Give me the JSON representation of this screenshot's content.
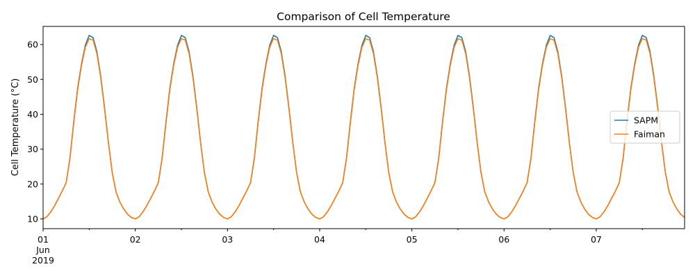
{
  "chart_data": {
    "type": "line",
    "title": "Comparison of Cell Temperature",
    "xlabel": "",
    "ylabel": "Cell Temperature (°C)",
    "x_range": [
      "2019-06-01 00:00",
      "2019-06-07 23:00"
    ],
    "x_step": "1 hour",
    "xlim_days": [
      0,
      6.958
    ],
    "ylim": [
      7.2,
      65.2
    ],
    "yticks": [
      10,
      20,
      30,
      40,
      50,
      60
    ],
    "xticks": [
      {
        "day": 0,
        "label": [
          "01",
          "Jun",
          "2019"
        ]
      },
      {
        "day": 1,
        "label": [
          "02"
        ]
      },
      {
        "day": 2,
        "label": [
          "03"
        ]
      },
      {
        "day": 3,
        "label": [
          "04"
        ]
      },
      {
        "day": 4,
        "label": [
          "05"
        ]
      },
      {
        "day": 5,
        "label": [
          "06"
        ]
      },
      {
        "day": 6,
        "label": [
          "07"
        ]
      }
    ],
    "grid": false,
    "legend_placement": "center-right",
    "series": [
      {
        "name": "SAPM",
        "color": "#1f77b4",
        "values": [
          10.0,
          10.6,
          12.0,
          13.8,
          15.9,
          18.0,
          20.4,
          27.5,
          38.0,
          47.5,
          54.5,
          59.8,
          62.6,
          62.0,
          58.0,
          51.0,
          42.0,
          32.0,
          23.3,
          17.7,
          14.8,
          12.8,
          11.3,
          10.4,
          10.0,
          10.6,
          12.0,
          13.8,
          15.9,
          18.0,
          20.4,
          27.5,
          38.0,
          47.5,
          54.5,
          59.8,
          62.6,
          62.0,
          58.0,
          51.0,
          42.0,
          32.0,
          23.3,
          17.7,
          14.8,
          12.8,
          11.3,
          10.4,
          10.0,
          10.6,
          12.0,
          13.8,
          15.9,
          18.0,
          20.4,
          27.5,
          38.0,
          47.5,
          54.5,
          59.8,
          62.6,
          62.0,
          58.0,
          51.0,
          42.0,
          32.0,
          23.3,
          17.7,
          14.8,
          12.8,
          11.3,
          10.4,
          10.0,
          10.6,
          12.0,
          13.8,
          15.9,
          18.0,
          20.4,
          27.5,
          38.0,
          47.5,
          54.5,
          59.8,
          62.6,
          62.0,
          58.0,
          51.0,
          42.0,
          32.0,
          23.3,
          17.7,
          14.8,
          12.8,
          11.3,
          10.4,
          10.0,
          10.6,
          12.0,
          13.8,
          15.9,
          18.0,
          20.4,
          27.5,
          38.0,
          47.5,
          54.5,
          59.8,
          62.6,
          62.0,
          58.0,
          51.0,
          42.0,
          32.0,
          23.3,
          17.7,
          14.8,
          12.8,
          11.3,
          10.4,
          10.0,
          10.6,
          12.0,
          13.8,
          15.9,
          18.0,
          20.4,
          27.5,
          38.0,
          47.5,
          54.5,
          59.8,
          62.6,
          62.0,
          58.0,
          51.0,
          42.0,
          32.0,
          23.3,
          17.7,
          14.8,
          12.8,
          11.3,
          10.4,
          10.0,
          10.6,
          12.0,
          13.8,
          15.9,
          18.0,
          20.4,
          27.5,
          38.0,
          47.5,
          54.5,
          59.8,
          62.6,
          62.0,
          58.0,
          51.0,
          42.0,
          32.0,
          23.3,
          17.7,
          14.8,
          12.8,
          11.3,
          10.4
        ]
      },
      {
        "name": "Faiman",
        "color": "#ff7f0e",
        "values": [
          10.0,
          10.6,
          12.0,
          13.8,
          15.9,
          18.0,
          20.4,
          27.3,
          37.6,
          47.0,
          54.0,
          59.2,
          61.7,
          61.3,
          57.4,
          50.5,
          41.6,
          31.8,
          23.2,
          17.7,
          14.8,
          12.8,
          11.3,
          10.4,
          10.0,
          10.6,
          12.0,
          13.8,
          15.9,
          18.0,
          20.4,
          27.3,
          37.6,
          47.0,
          54.0,
          59.2,
          61.7,
          61.3,
          57.4,
          50.5,
          41.6,
          31.8,
          23.2,
          17.7,
          14.8,
          12.8,
          11.3,
          10.4,
          10.0,
          10.6,
          12.0,
          13.8,
          15.9,
          18.0,
          20.4,
          27.3,
          37.6,
          47.0,
          54.0,
          59.2,
          61.7,
          61.3,
          57.4,
          50.5,
          41.6,
          31.8,
          23.2,
          17.7,
          14.8,
          12.8,
          11.3,
          10.4,
          10.0,
          10.6,
          12.0,
          13.8,
          15.9,
          18.0,
          20.4,
          27.3,
          37.6,
          47.0,
          54.0,
          59.2,
          61.7,
          61.3,
          57.4,
          50.5,
          41.6,
          31.8,
          23.2,
          17.7,
          14.8,
          12.8,
          11.3,
          10.4,
          10.0,
          10.6,
          12.0,
          13.8,
          15.9,
          18.0,
          20.4,
          27.3,
          37.6,
          47.0,
          54.0,
          59.2,
          61.7,
          61.3,
          57.4,
          50.5,
          41.6,
          31.8,
          23.2,
          17.7,
          14.8,
          12.8,
          11.3,
          10.4,
          10.0,
          10.6,
          12.0,
          13.8,
          15.9,
          18.0,
          20.4,
          27.3,
          37.6,
          47.0,
          54.0,
          59.2,
          61.7,
          61.3,
          57.4,
          50.5,
          41.6,
          31.8,
          23.2,
          17.7,
          14.8,
          12.8,
          11.3,
          10.4,
          10.0,
          10.6,
          12.0,
          13.8,
          15.9,
          18.0,
          20.4,
          27.3,
          37.6,
          47.0,
          54.0,
          59.2,
          61.7,
          61.3,
          57.4,
          50.5,
          41.6,
          31.8,
          23.2,
          17.7,
          14.8,
          12.8,
          11.3,
          10.4
        ]
      }
    ]
  }
}
